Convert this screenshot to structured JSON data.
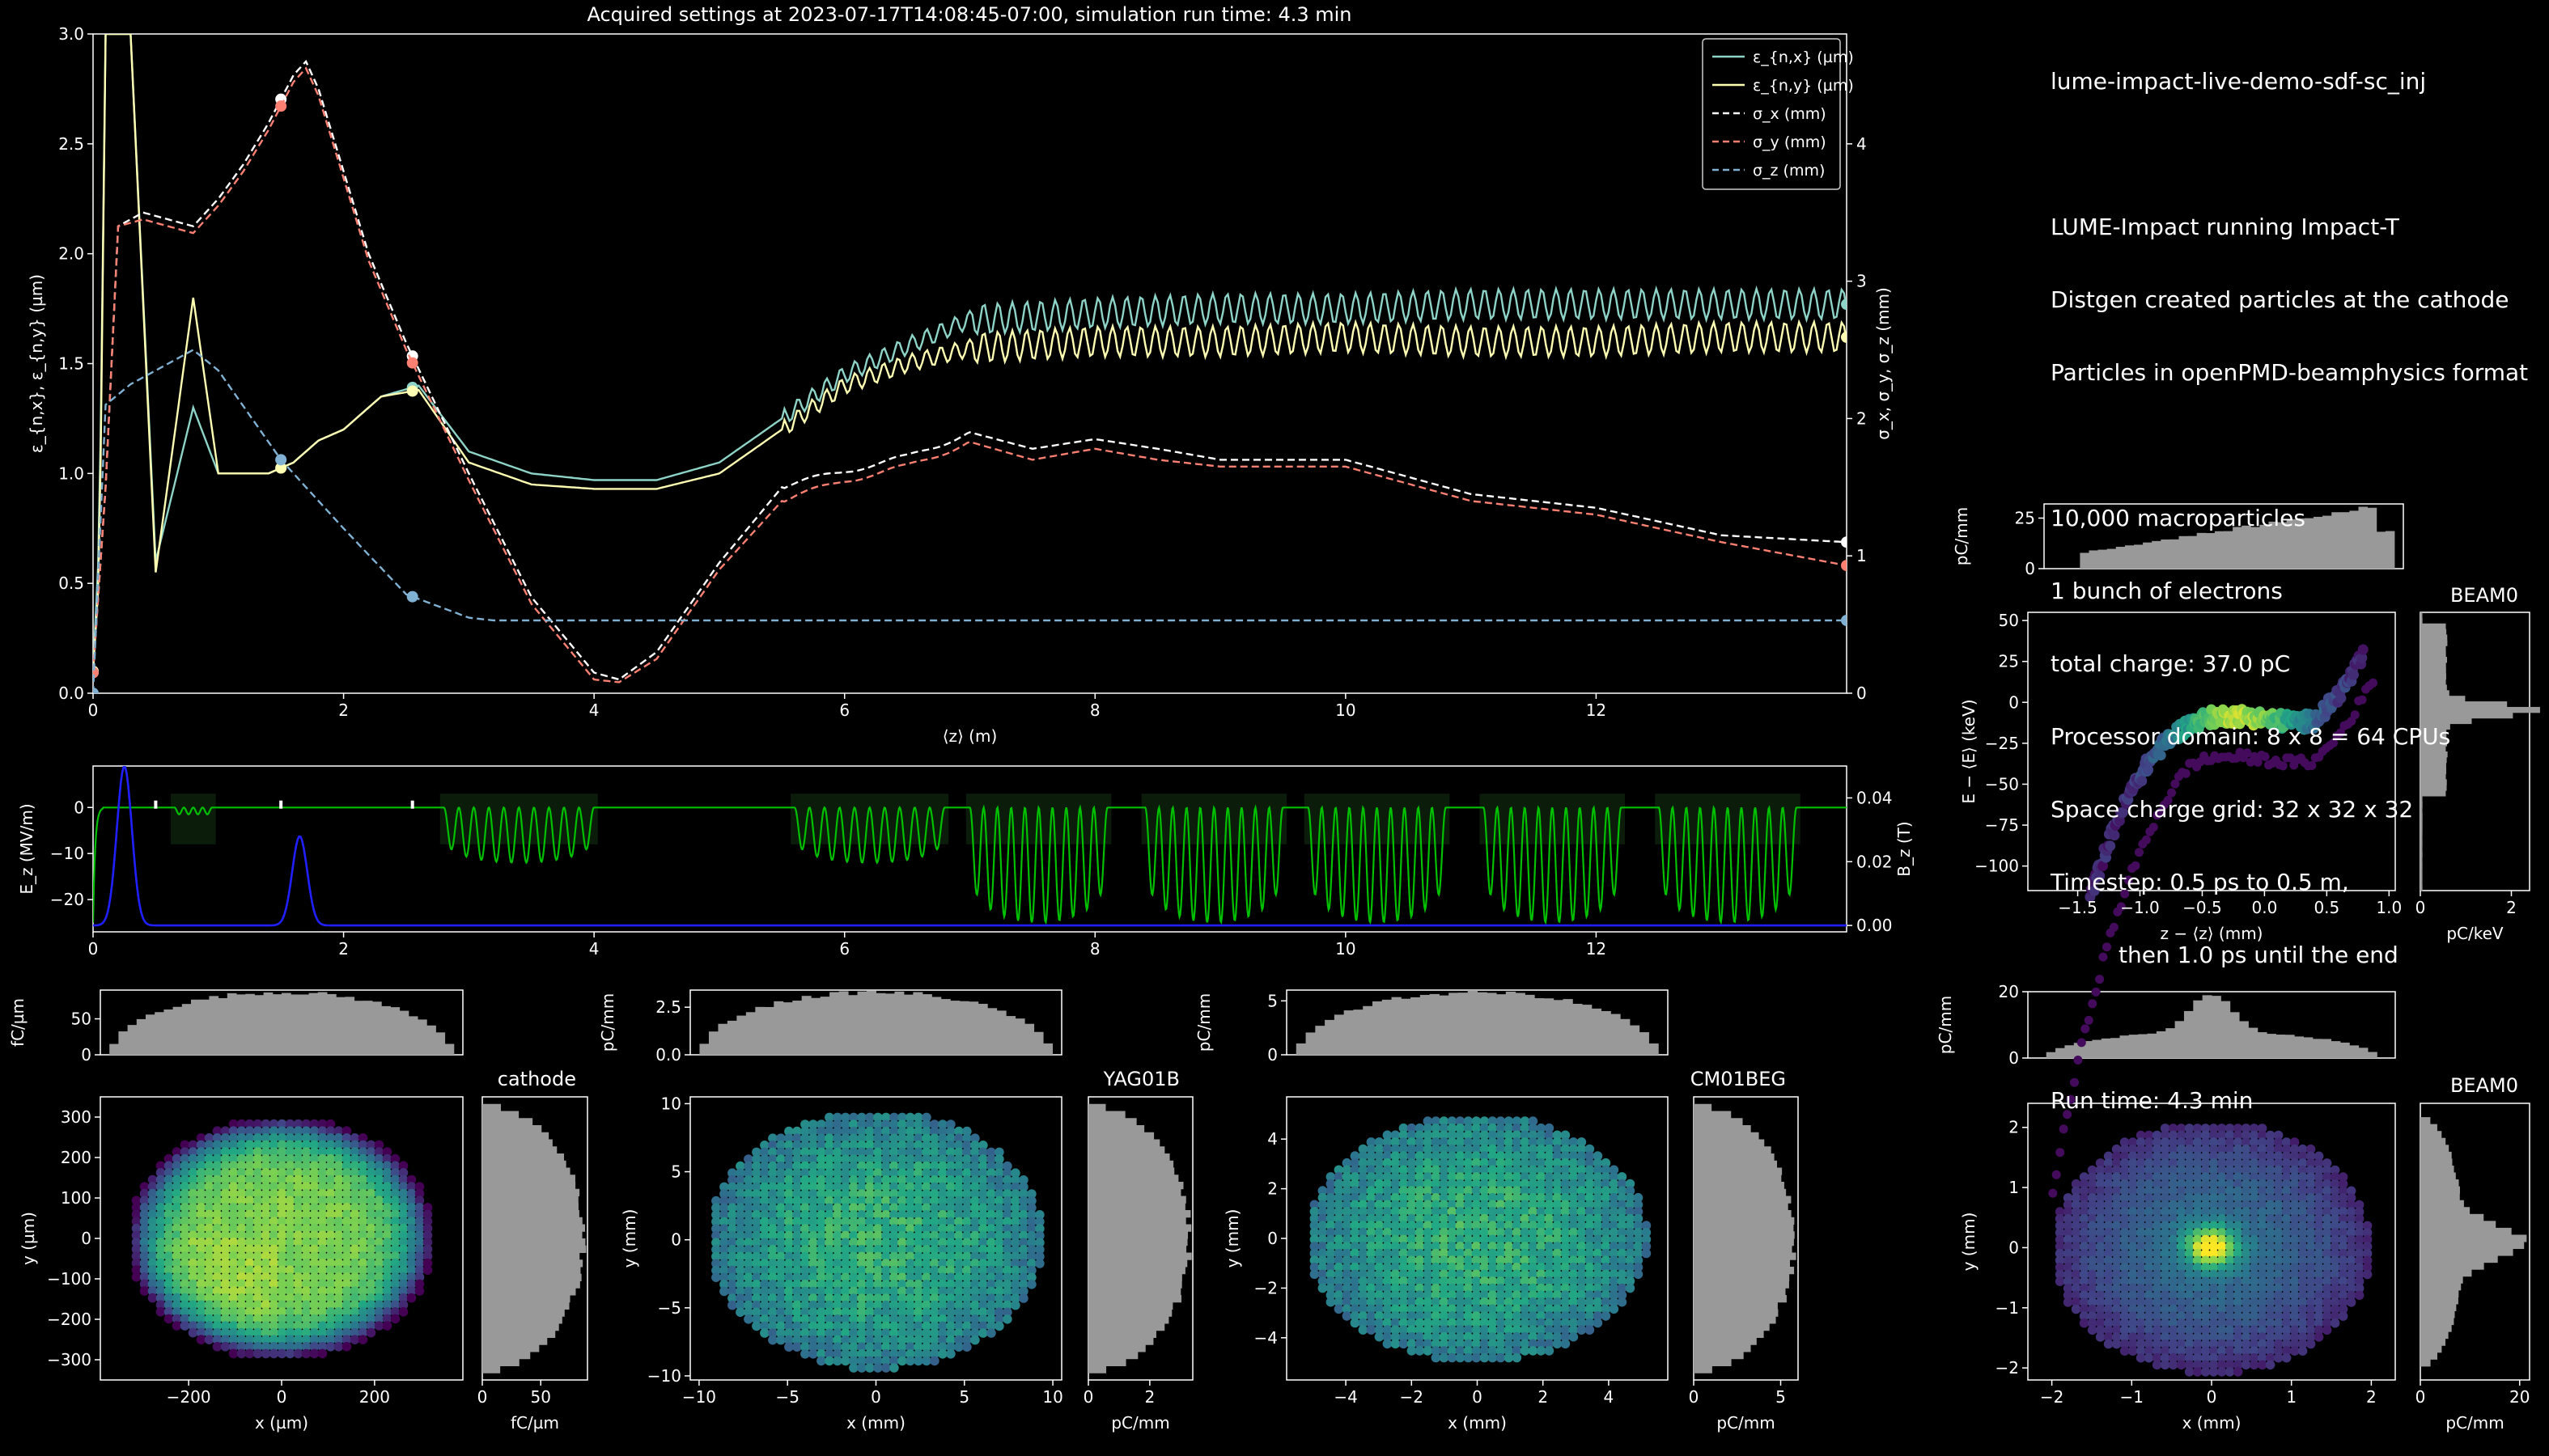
{
  "title": "Acquired settings at 2023-07-17T14:08:45-07:00, simulation run time:   4.3 min",
  "info": {
    "project": "lume-impact-live-demo-sdf-sc_inj",
    "lines_a": [
      "LUME-Impact running Impact-T",
      "Distgen created particles at the cathode",
      "Particles in openPMD-beamphysics format"
    ],
    "lines_b": [
      "10,000 macroparticles",
      "1 bunch of electrons",
      "total charge: 37.0 pC",
      "Processor domain: 8 x 8 = 64 CPUs",
      "Space charge grid: 32 x 32 x 32",
      "Timestep: 0.5 ps to 0.5 m,",
      "then 1.0 ps until the end"
    ],
    "run_time": "Run time: 4.3 min"
  },
  "colors": {
    "eps_x": "#8dd3c7",
    "eps_y": "#ffffb3",
    "sig_x": "#ffffff",
    "sig_y": "#fb8072",
    "sig_z": "#80b1d3",
    "hist": "#999999",
    "ez": "#00c000",
    "bz": "#2020ff"
  },
  "chart_data": [
    {
      "id": "main",
      "type": "line",
      "xlabel": "⟨z⟩ (m)",
      "ylabel": "ε_{n,x}, ε_{n,y} (µm)",
      "y2label": "σ_x, σ_y, σ_z (mm)",
      "xlim": [
        0,
        14
      ],
      "ylim": [
        0,
        3.0
      ],
      "y2lim": [
        0,
        4.8
      ],
      "xticks": [
        0,
        2,
        4,
        6,
        8,
        10,
        12
      ],
      "yticks": [
        "0.0",
        "0.5",
        "1.0",
        "1.5",
        "2.0",
        "2.5",
        "3.0"
      ],
      "y2ticks": [
        0,
        1,
        2,
        3,
        4
      ],
      "legend": "top-right",
      "series": [
        {
          "name": "ε_{n,x} (µm)",
          "axis": "left",
          "style": "solid",
          "x": [
            0,
            0.05,
            0.1,
            0.15,
            0.3,
            0.5,
            0.8,
            1.0,
            1.2,
            1.4,
            1.6,
            1.8,
            2.0,
            2.3,
            2.6,
            3.0,
            3.5,
            4.0,
            4.5,
            5.0,
            5.5,
            6.0,
            6.5,
            7.0,
            8.0,
            9.0,
            10.0,
            11.0,
            12.0,
            13.0,
            14.0
          ],
          "y": [
            0.1,
            0.7,
            3.0,
            3.0,
            3.0,
            0.6,
            1.3,
            1.0,
            1.0,
            1.0,
            1.05,
            1.15,
            1.2,
            1.35,
            1.4,
            1.1,
            1.0,
            0.97,
            0.97,
            1.05,
            1.25,
            1.45,
            1.58,
            1.7,
            1.73,
            1.75,
            1.75,
            1.77,
            1.77,
            1.77,
            1.77
          ]
        },
        {
          "name": "ε_{n,y} (µm)",
          "axis": "left",
          "style": "solid",
          "x": [
            0,
            0.05,
            0.1,
            0.15,
            0.3,
            0.5,
            0.8,
            1.0,
            1.2,
            1.4,
            1.6,
            1.8,
            2.0,
            2.3,
            2.6,
            3.0,
            3.5,
            4.0,
            4.5,
            5.0,
            5.5,
            6.0,
            6.5,
            7.0,
            8.0,
            9.0,
            10.0,
            11.0,
            12.0,
            13.0,
            14.0
          ],
          "y": [
            0.1,
            0.55,
            3.0,
            3.0,
            3.0,
            0.55,
            1.8,
            1.0,
            1.0,
            1.0,
            1.05,
            1.15,
            1.2,
            1.35,
            1.38,
            1.05,
            0.95,
            0.93,
            0.93,
            1.0,
            1.2,
            1.4,
            1.5,
            1.57,
            1.6,
            1.6,
            1.62,
            1.6,
            1.6,
            1.62,
            1.62
          ]
        },
        {
          "name": "σ_x (mm)",
          "axis": "right",
          "style": "dashed",
          "x": [
            0,
            0.1,
            0.2,
            0.4,
            0.6,
            0.8,
            1.0,
            1.2,
            1.4,
            1.6,
            1.7,
            1.8,
            2.0,
            2.2,
            2.5,
            3.0,
            3.5,
            4.0,
            4.2,
            4.5,
            5.0,
            5.5,
            6.0,
            6.5,
            7.0,
            7.5,
            8.0,
            8.5,
            9.0,
            10.0,
            11.0,
            12.0,
            13.0,
            14.0
          ],
          "y": [
            0.15,
            1.5,
            3.4,
            3.5,
            3.45,
            3.4,
            3.6,
            3.85,
            4.15,
            4.5,
            4.6,
            4.4,
            3.8,
            3.2,
            2.55,
            1.6,
            0.7,
            0.15,
            0.1,
            0.3,
            0.95,
            1.5,
            1.62,
            1.72,
            1.9,
            1.78,
            1.85,
            1.78,
            1.7,
            1.7,
            1.45,
            1.35,
            1.15,
            1.1
          ]
        },
        {
          "name": "σ_y (mm)",
          "axis": "right",
          "style": "dashed",
          "x": [
            0,
            0.1,
            0.2,
            0.4,
            0.6,
            0.8,
            1.0,
            1.2,
            1.4,
            1.6,
            1.7,
            1.8,
            2.0,
            2.2,
            2.5,
            3.0,
            3.5,
            4.0,
            4.2,
            4.5,
            5.0,
            5.5,
            6.0,
            6.5,
            7.0,
            7.5,
            8.0,
            8.5,
            9.0,
            10.0,
            11.0,
            12.0,
            13.0,
            14.0
          ],
          "y": [
            0.15,
            1.5,
            3.4,
            3.45,
            3.4,
            3.35,
            3.55,
            3.8,
            4.1,
            4.45,
            4.55,
            4.35,
            3.75,
            3.15,
            2.5,
            1.55,
            0.65,
            0.1,
            0.08,
            0.25,
            0.9,
            1.4,
            1.55,
            1.65,
            1.83,
            1.7,
            1.78,
            1.7,
            1.65,
            1.65,
            1.4,
            1.3,
            1.1,
            0.93
          ]
        },
        {
          "name": "σ_z (mm)",
          "axis": "right",
          "style": "dashed",
          "x": [
            0,
            0.1,
            0.3,
            0.5,
            0.8,
            1.0,
            1.5,
            2.0,
            2.5,
            3.0,
            3.2,
            4.0,
            6.0,
            8.0,
            10.0,
            12.0,
            14.0
          ],
          "y": [
            0.0,
            2.1,
            2.25,
            2.35,
            2.5,
            2.35,
            1.7,
            1.2,
            0.72,
            0.55,
            0.53,
            0.53,
            0.53,
            0.53,
            0.53,
            0.53,
            0.53
          ]
        }
      ]
    },
    {
      "id": "fields",
      "type": "line",
      "ylabel": "E_z (MV/m)",
      "y2label": "B_z (T)",
      "xlim": [
        0,
        14
      ],
      "ylim": [
        -27,
        9
      ],
      "y2lim": [
        -0.002,
        0.05
      ],
      "xticks": [
        0,
        2,
        4,
        6,
        8,
        10,
        12
      ],
      "yticks": [
        0,
        -10,
        -20
      ],
      "y2ticks": [
        "0.04",
        "0.02",
        "0.00"
      ],
      "bz_peaks": [
        {
          "z": 0.25,
          "b": 0.05
        },
        {
          "z": 1.65,
          "b": 0.028
        }
      ],
      "ez_sections": [
        {
          "z0": 0.65,
          "z1": 0.95,
          "amp": 1.5,
          "n": 2
        },
        {
          "z0": 2.8,
          "z1": 4.0,
          "amp": 12,
          "n": 10
        },
        {
          "z0": 5.6,
          "z1": 6.8,
          "amp": 12,
          "n": 10
        },
        {
          "z0": 7.0,
          "z1": 8.1,
          "amp": 25,
          "n": 10
        },
        {
          "z0": 8.4,
          "z1": 9.5,
          "amp": 25,
          "n": 10
        },
        {
          "z0": 9.7,
          "z1": 10.8,
          "amp": 25,
          "n": 10
        },
        {
          "z0": 11.1,
          "z1": 12.2,
          "amp": 25,
          "n": 10
        },
        {
          "z0": 12.5,
          "z1": 13.6,
          "amp": 25,
          "n": 10
        }
      ]
    },
    {
      "id": "beam0_long",
      "type": "scatter",
      "label": "BEAM0",
      "xlabel": "z − ⟨z⟩ (mm)",
      "ylabel": "E − ⟨E⟩ (keV)",
      "xlim": [
        -1.9,
        1.05
      ],
      "ylim": [
        -115,
        55
      ],
      "xticks": [
        "−1.5",
        "−1.0",
        "−0.5",
        "0.0",
        "0.5",
        "1.0"
      ],
      "yticks": [
        50,
        25,
        0,
        -25,
        -50,
        -75,
        -100
      ],
      "top_hist": {
        "ylabel": "pC/mm",
        "yticks": [
          0,
          25
        ],
        "ymax": 32
      },
      "side_hist": {
        "xlabel": "pC/keV",
        "xticks": [
          0,
          2
        ],
        "xmax": 2.4
      }
    },
    {
      "id": "cathode",
      "type": "heatmap",
      "label": "cathode",
      "xlabel": "x (µm)",
      "ylabel": "y (µm)",
      "xlim": [
        -390,
        390
      ],
      "ylim": [
        -350,
        350
      ],
      "xticks": [
        -200,
        0,
        200
      ],
      "yticks": [
        300,
        200,
        100,
        0,
        -100,
        -200,
        -300
      ],
      "rx": 330,
      "ry": 300,
      "shape": "flat",
      "top_hist": {
        "ylabel": "fC/µm",
        "yticks": [
          0,
          50
        ],
        "ymax": 90
      },
      "side_hist": {
        "xlabel": "fC/µm",
        "xticks": [
          0,
          50
        ],
        "xmax": 90
      }
    },
    {
      "id": "yag01b",
      "type": "heatmap",
      "label": "YAG01B",
      "xlabel": "x (mm)",
      "ylabel": "y (mm)",
      "xlim": [
        -10.5,
        10.5
      ],
      "ylim": [
        -10.3,
        10.5
      ],
      "xticks": [
        -10,
        -5,
        0,
        5,
        10
      ],
      "yticks": [
        10,
        5,
        0,
        -5,
        -10
      ],
      "rx": 9.5,
      "ry": 9.5,
      "shape": "mid",
      "top_hist": {
        "ylabel": "pC/mm",
        "yticks": [
          "0.0",
          "2.5"
        ],
        "ymax": 3.4
      },
      "side_hist": {
        "xlabel": "pC/mm",
        "xticks": [
          0,
          2
        ],
        "xmax": 3.4
      }
    },
    {
      "id": "cm01beg",
      "type": "heatmap",
      "label": "CM01BEG",
      "xlabel": "x (mm)",
      "ylabel": "y (mm)",
      "xlim": [
        -5.8,
        5.8
      ],
      "ylim": [
        -5.7,
        5.7
      ],
      "xticks": [
        -4,
        -2,
        0,
        2,
        4
      ],
      "yticks": [
        4,
        2,
        0,
        -2,
        -4
      ],
      "rx": 5.2,
      "ry": 5.0,
      "shape": "mid",
      "top_hist": {
        "ylabel": "pC/mm",
        "yticks": [
          0,
          5
        ],
        "ymax": 6
      },
      "side_hist": {
        "xlabel": "pC/mm",
        "xticks": [
          0,
          5
        ],
        "xmax": 6
      }
    },
    {
      "id": "beam0_xy",
      "type": "heatmap",
      "label": "BEAM0",
      "xlabel": "x (mm)",
      "ylabel": "y (mm)",
      "xlim": [
        -2.3,
        2.3
      ],
      "ylim": [
        -2.2,
        2.4
      ],
      "xticks": [
        -2,
        -1,
        0,
        1,
        2
      ],
      "yticks": [
        2,
        1,
        0,
        -1,
        -2
      ],
      "rx": 2.0,
      "ry": 2.1,
      "shape": "peak",
      "top_hist": {
        "ylabel": "pC/mm",
        "yticks": [
          0,
          20
        ],
        "ymax": 20
      },
      "side_hist": {
        "xlabel": "pC/mm",
        "xticks": [
          0,
          20
        ],
        "xmax": 22
      }
    }
  ]
}
